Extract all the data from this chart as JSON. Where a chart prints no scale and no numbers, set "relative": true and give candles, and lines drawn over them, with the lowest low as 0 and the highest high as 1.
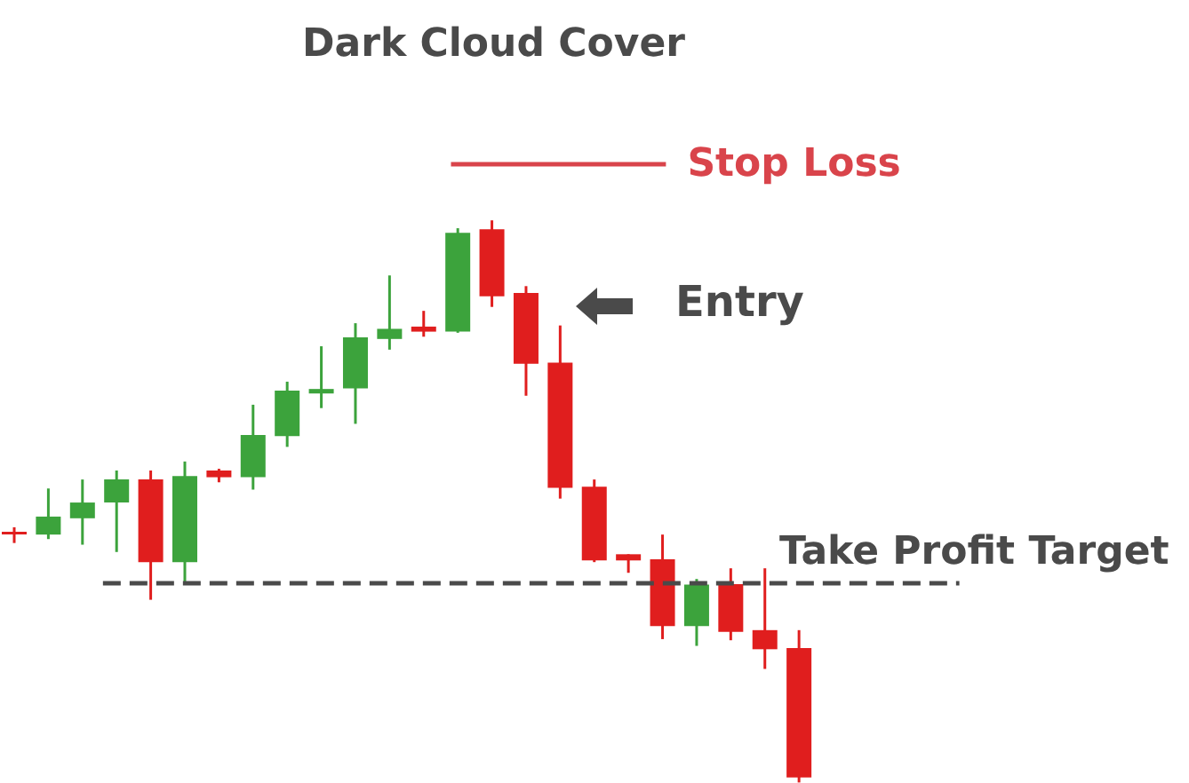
{
  "chart_data": {
    "type": "candlestick",
    "title": "Dark Cloud Cover",
    "relative": true,
    "categories": [
      null,
      null,
      null,
      null,
      null,
      null,
      null,
      null,
      null,
      null,
      null,
      null,
      null,
      null,
      null,
      null,
      null,
      null,
      null,
      null,
      null,
      null,
      null,
      null
    ],
    "ohlc": [
      [
        0.446,
        0.454,
        0.426,
        0.444
      ],
      [
        0.441,
        0.523,
        0.433,
        0.473
      ],
      [
        0.47,
        0.539,
        0.423,
        0.498
      ],
      [
        0.498,
        0.555,
        0.41,
        0.539
      ],
      [
        0.539,
        0.555,
        0.325,
        0.392
      ],
      [
        0.392,
        0.571,
        0.357,
        0.545
      ],
      [
        0.555,
        0.558,
        0.534,
        0.543
      ],
      [
        0.543,
        0.672,
        0.521,
        0.618
      ],
      [
        0.616,
        0.713,
        0.597,
        0.697
      ],
      [
        0.692,
        0.776,
        0.666,
        0.7
      ],
      [
        0.701,
        0.817,
        0.638,
        0.792
      ],
      [
        0.789,
        0.902,
        0.77,
        0.807
      ],
      [
        0.811,
        0.839,
        0.793,
        0.802
      ],
      [
        0.802,
        0.986,
        0.8,
        0.978
      ],
      [
        0.984,
        1,
        0.846,
        0.865
      ],
      [
        0.871,
        0.883,
        0.688,
        0.745
      ],
      [
        0.747,
        0.813,
        0.505,
        0.524
      ],
      [
        0.526,
        0.539,
        0.392,
        0.395
      ],
      [
        0.406,
        0.406,
        0.373,
        0.395
      ],
      [
        0.397,
        0.441,
        0.255,
        0.278
      ],
      [
        0.278,
        0.362,
        0.243,
        0.352
      ],
      [
        0.353,
        0.381,
        0.253,
        0.268
      ],
      [
        0.271,
        0.381,
        0.202,
        0.237
      ],
      [
        0.239,
        0.271,
        0,
        0.009
      ]
    ],
    "colors": [
      "#e01e1e",
      "#3ca33c",
      "#3ca33c",
      "#3ca33c",
      "#e01e1e",
      "#3ca33c",
      "#e01e1e",
      "#3ca33c",
      "#3ca33c",
      "#3ca33c",
      "#3ca33c",
      "#3ca33c",
      "#e01e1e",
      "#3ca33c",
      "#e01e1e",
      "#e01e1e",
      "#e01e1e",
      "#e01e1e",
      "#e01e1e",
      "#e01e1e",
      "#3ca33c",
      "#e01e1e",
      "#e01e1e",
      "#e01e1e"
    ],
    "ref_lines": [
      {
        "axis": "y",
        "value": 1.1,
        "label": "Stop Loss",
        "color": "#d9444b",
        "line_style": "solid"
      },
      {
        "axis": "y",
        "value": 0.356,
        "label": "Take Profit Target",
        "color": "#4a4a4a",
        "line_style": "dashed"
      }
    ],
    "annotations": [
      "Entry"
    ]
  }
}
